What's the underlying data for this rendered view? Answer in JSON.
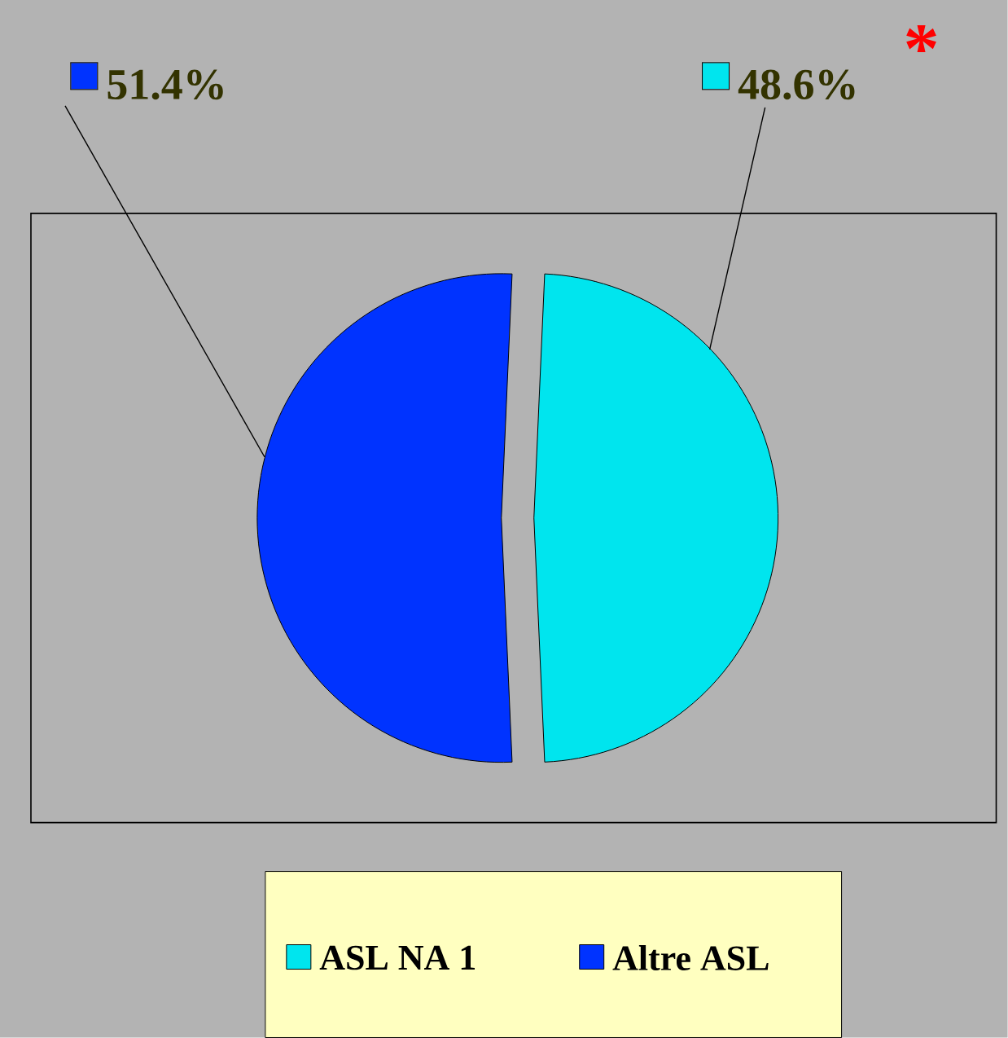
{
  "chart_data": {
    "type": "pie",
    "categories": [
      "ASL NA 1",
      "Altre ASL"
    ],
    "values": [
      48.6,
      51.4
    ],
    "colors": [
      "#00e5ee",
      "#0033ff"
    ],
    "value_labels": [
      "48.6%",
      "51.4%"
    ],
    "legend": "bottom",
    "annotations": [
      "*"
    ]
  }
}
